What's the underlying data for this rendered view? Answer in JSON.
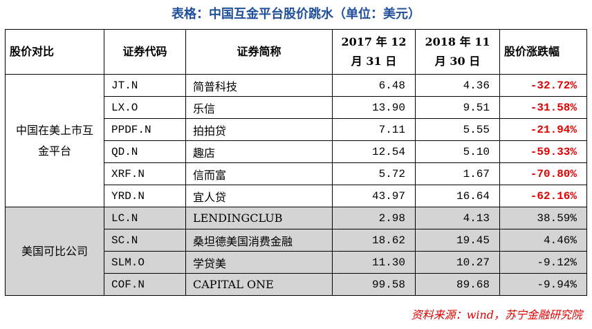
{
  "title": "表格：中国互金平台股价跳水（单位：美元）",
  "table": {
    "headers": [
      "股价对比",
      "证券代码",
      "证券简称",
      "2017 年 12 月 31 日",
      "2018 年 11 月 30 日",
      "股价涨跌幅"
    ],
    "groups": [
      {
        "label": "中国在美上市互金平台",
        "background": "#ffffff",
        "change_color": "#e00000",
        "change_bold": true,
        "rows": [
          [
            "JT.N",
            "简普科技",
            "6.48",
            "4.36",
            "-32.72%"
          ],
          [
            "LX.O",
            "乐信",
            "13.90",
            "9.51",
            "-31.58%"
          ],
          [
            "PPDF.N",
            "拍拍贷",
            "7.11",
            "5.55",
            "-21.94%"
          ],
          [
            "QD.N",
            "趣店",
            "12.54",
            "5.10",
            "-59.33%"
          ],
          [
            "XRF.N",
            "信而富",
            "5.72",
            "1.67",
            "-70.80%"
          ],
          [
            "YRD.N",
            "宜人贷",
            "43.97",
            "16.64",
            "-62.16%"
          ]
        ]
      },
      {
        "label": "美国可比公司",
        "background": "#d4d4d4",
        "change_color": "#000000",
        "change_bold": false,
        "rows": [
          [
            "LC.N",
            "LENDINGCLUB",
            "2.98",
            "4.13",
            "38.59%"
          ],
          [
            "SC.N",
            "桑坦德美国消费金融",
            "18.62",
            "19.45",
            "4.46%"
          ],
          [
            "SLM.O",
            "学贷美",
            "11.30",
            "10.27",
            "-9.12%"
          ],
          [
            "COF.N",
            "CAPITAL ONE",
            "99.58",
            "89.68",
            "-9.94%"
          ]
        ]
      }
    ]
  },
  "source": "资料来源：wind，苏宁金融研究院"
}
